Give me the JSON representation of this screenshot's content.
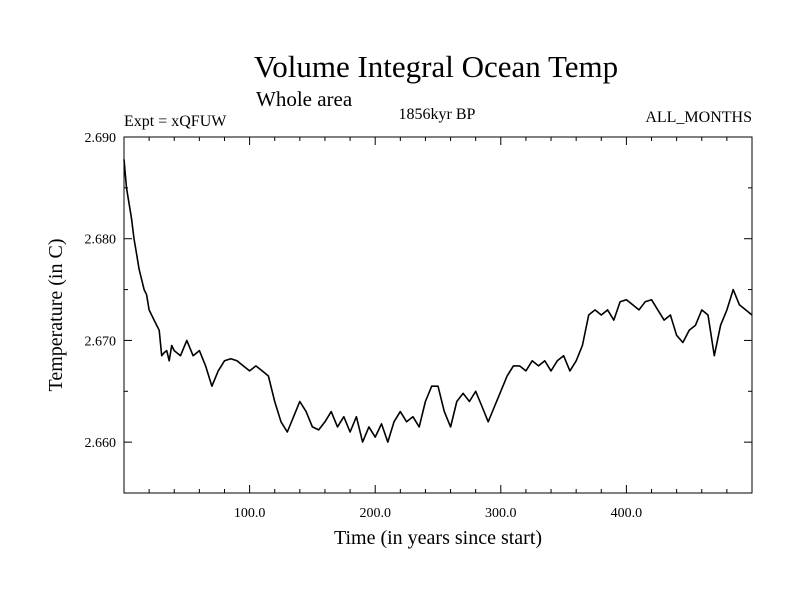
{
  "chart_data": {
    "type": "line",
    "title": "Volume Integral Ocean Temp",
    "subtitle": "Whole area",
    "experiment": "Expt = xQFUW",
    "period": "1856kyr BP",
    "months": "ALL_MONTHS",
    "xlabel": "Time (in years since start)",
    "ylabel": "Temperature (in C)",
    "xlim": [
      0,
      500
    ],
    "ylim": [
      2.655,
      2.69
    ],
    "x_ticks": [
      100,
      200,
      300,
      400
    ],
    "x_tick_labels": [
      "100.0",
      "200.0",
      "300.0",
      "400.0"
    ],
    "y_ticks": [
      2.66,
      2.67,
      2.68,
      2.69
    ],
    "y_tick_labels": [
      "2.660",
      "2.670",
      "2.680",
      "2.690"
    ],
    "series": [
      {
        "name": "Volume Integral Ocean Temp",
        "color": "#000000",
        "x": [
          0,
          2,
          4,
          6,
          8,
          10,
          12,
          14,
          16,
          18,
          20,
          22,
          24,
          26,
          28,
          30,
          32,
          34,
          36,
          38,
          40,
          45,
          50,
          55,
          60,
          65,
          70,
          75,
          80,
          85,
          90,
          95,
          100,
          105,
          110,
          115,
          120,
          125,
          130,
          135,
          140,
          145,
          150,
          155,
          160,
          165,
          170,
          175,
          180,
          185,
          190,
          195,
          200,
          205,
          210,
          215,
          220,
          225,
          230,
          235,
          240,
          245,
          250,
          255,
          260,
          265,
          270,
          275,
          280,
          285,
          290,
          295,
          300,
          305,
          310,
          315,
          320,
          325,
          330,
          335,
          340,
          345,
          350,
          355,
          360,
          365,
          370,
          375,
          380,
          385,
          390,
          395,
          400,
          405,
          410,
          415,
          420,
          425,
          430,
          435,
          440,
          445,
          450,
          455,
          460,
          465,
          470,
          475,
          480,
          485,
          490,
          495,
          500
        ],
        "y": [
          2.6878,
          2.685,
          2.6835,
          2.682,
          2.68,
          2.6785,
          2.677,
          2.676,
          2.675,
          2.6745,
          2.673,
          2.6725,
          2.672,
          2.6715,
          2.671,
          2.6685,
          2.6688,
          2.669,
          2.668,
          2.6695,
          2.669,
          2.6685,
          2.67,
          2.6685,
          2.669,
          2.6675,
          2.6655,
          2.667,
          2.668,
          2.6682,
          2.668,
          2.6675,
          2.667,
          2.6675,
          2.667,
          2.6665,
          2.664,
          2.662,
          2.661,
          2.6625,
          2.664,
          2.663,
          2.6615,
          2.6612,
          2.662,
          2.663,
          2.6615,
          2.6625,
          2.661,
          2.6625,
          2.66,
          2.6615,
          2.6605,
          2.6618,
          2.66,
          2.662,
          2.663,
          2.662,
          2.6625,
          2.6615,
          2.664,
          2.6655,
          2.6655,
          2.663,
          2.6615,
          2.664,
          2.6648,
          2.664,
          2.665,
          2.6635,
          2.662,
          2.6635,
          2.665,
          2.6665,
          2.6675,
          2.6675,
          2.667,
          2.668,
          2.6675,
          2.668,
          2.667,
          2.668,
          2.6685,
          2.667,
          2.668,
          2.6695,
          2.6725,
          2.673,
          2.6725,
          2.673,
          2.672,
          2.6738,
          2.674,
          2.6735,
          2.673,
          2.6738,
          2.674,
          2.673,
          2.672,
          2.6725,
          2.6705,
          2.6698,
          2.671,
          2.6715,
          2.673,
          2.6725,
          2.6685,
          2.6715,
          2.673,
          2.675,
          2.6735,
          2.673,
          2.6725
        ]
      }
    ]
  }
}
